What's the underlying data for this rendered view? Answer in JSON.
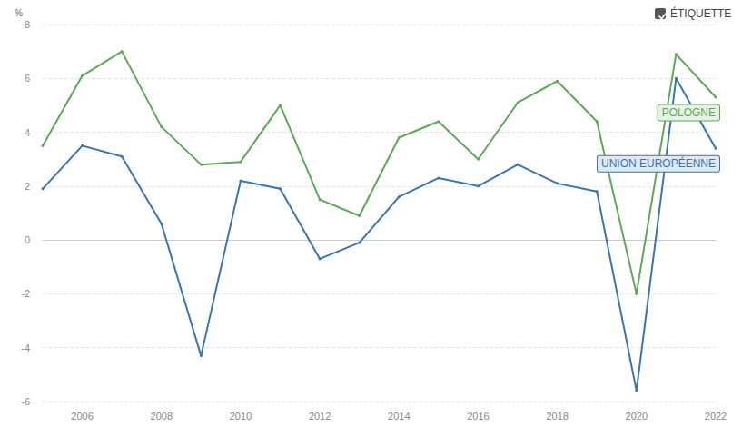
{
  "chart_data": {
    "type": "line",
    "ylabel": "%",
    "annotations": [
      "ÉTIQUETTE"
    ],
    "x": [
      2005,
      2006,
      2007,
      2008,
      2009,
      2010,
      2011,
      2012,
      2013,
      2014,
      2015,
      2016,
      2017,
      2018,
      2019,
      2020,
      2021,
      2022
    ],
    "series": [
      {
        "name": "POLOGNE",
        "color": "#5fa85a",
        "values": [
          3.5,
          6.1,
          7.0,
          4.2,
          2.8,
          2.9,
          5.0,
          1.5,
          0.9,
          3.8,
          4.4,
          3.0,
          5.1,
          5.9,
          4.4,
          -2.0,
          6.9,
          5.3
        ]
      },
      {
        "name": "UNION EUROPÉENNE",
        "color": "#3a75b0",
        "values": [
          1.9,
          3.5,
          3.1,
          0.6,
          -4.3,
          2.2,
          1.9,
          -0.7,
          -0.1,
          1.6,
          2.3,
          2.0,
          2.8,
          2.1,
          1.8,
          -5.6,
          6.0,
          3.4
        ]
      }
    ],
    "xlim": [
      2005,
      2022
    ],
    "xticks": [
      2006,
      2008,
      2010,
      2012,
      2014,
      2016,
      2018,
      2020,
      2022
    ],
    "ylim": [
      -6,
      8
    ],
    "yticks": [
      -6,
      -4,
      -2,
      0,
      2,
      4,
      6,
      8
    ],
    "grid": true,
    "marker": "circle",
    "line_style": "solid"
  }
}
